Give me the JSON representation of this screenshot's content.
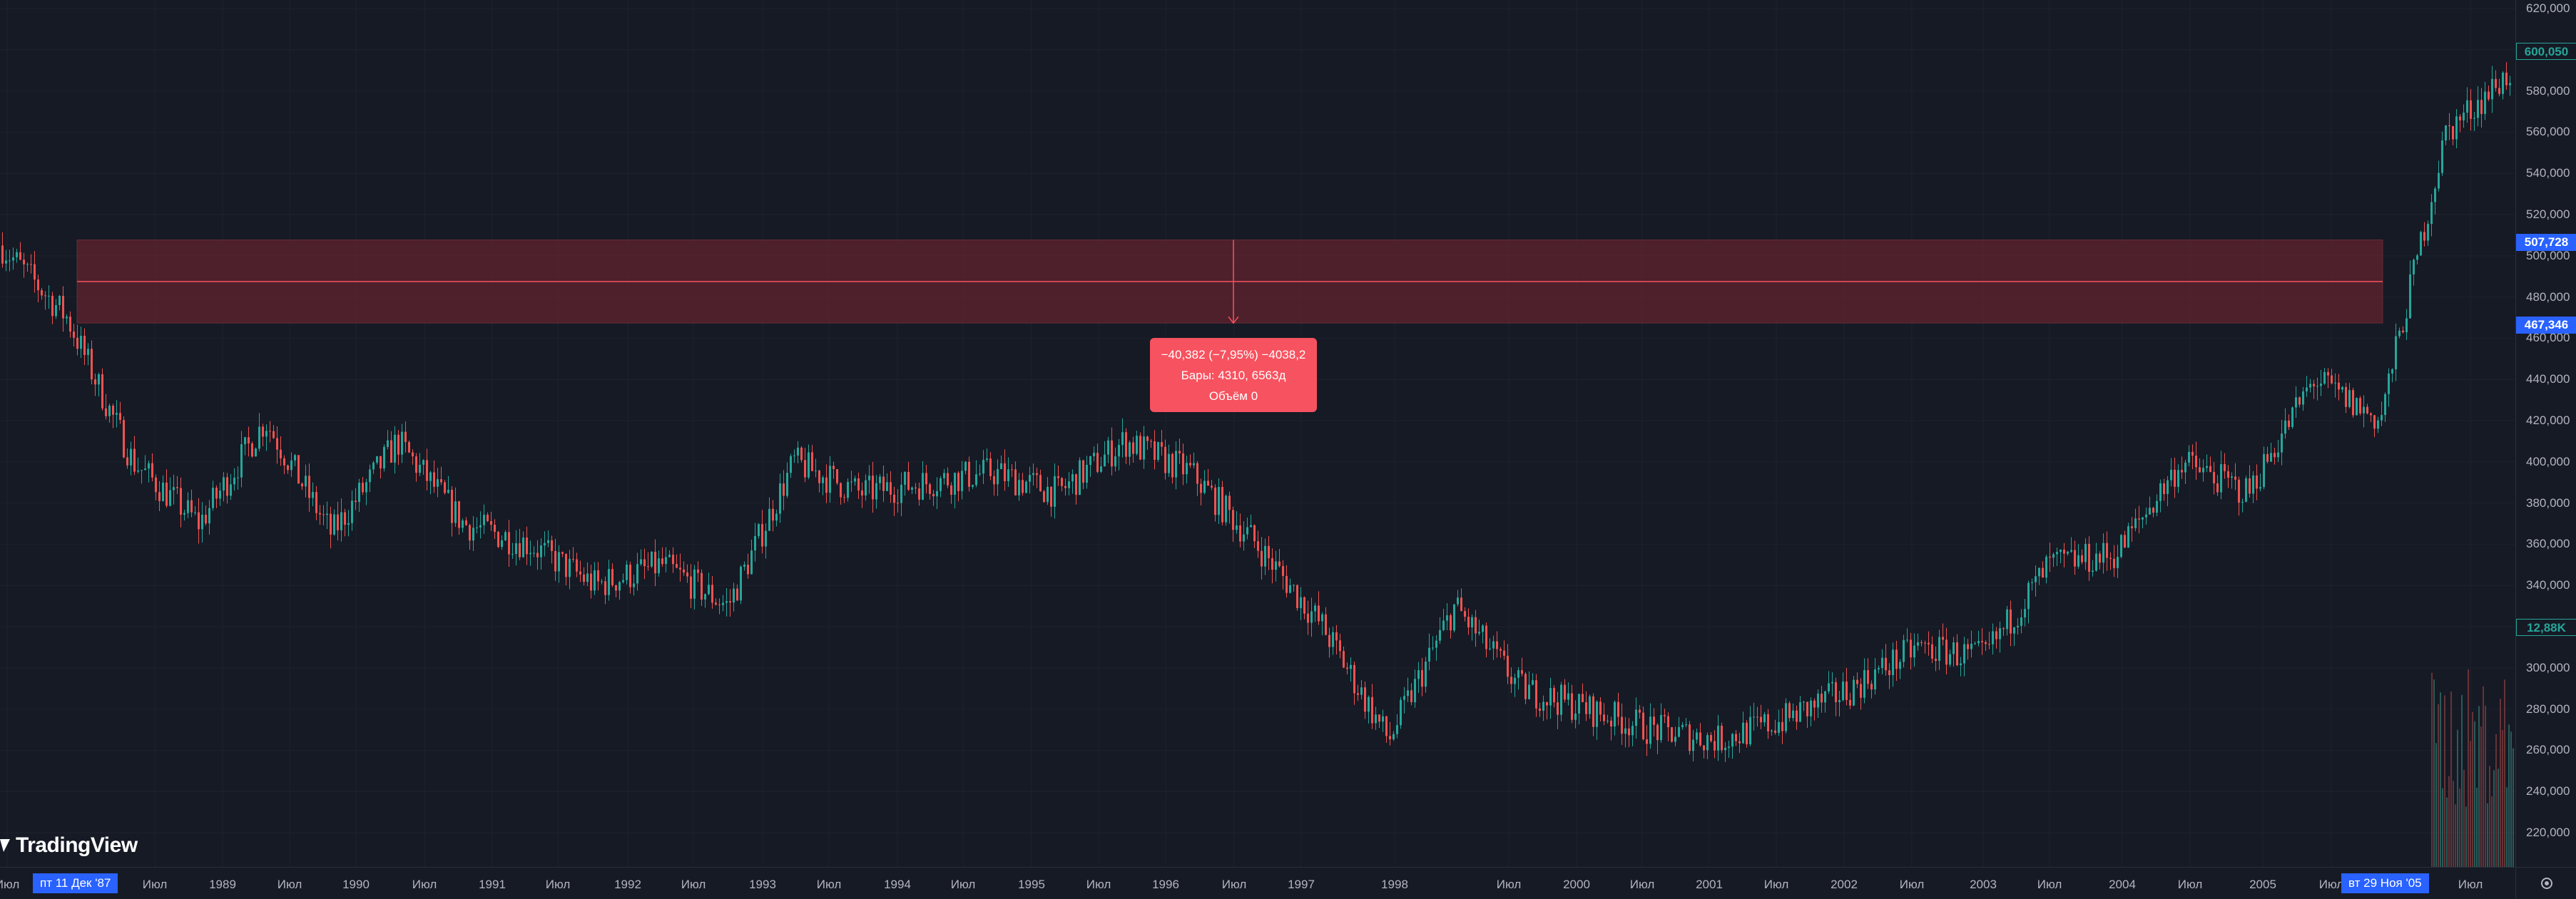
{
  "app": {
    "logo_text": "TradingView"
  },
  "colors": {
    "background": "#161a25",
    "grid": "#1e222d",
    "up_candle": "#26a69a",
    "down_candle": "#ef5350",
    "measure_fill": "#7a2631",
    "measure_line": "#f7525f",
    "tooltip_bg": "#f7525f",
    "crosshair_tag": "#2962ff",
    "last_price": "#26a69a"
  },
  "price_axis": {
    "labels": [
      "620,000",
      "600,000",
      "580,000",
      "560,000",
      "540,000",
      "520,000",
      "500,000",
      "480,000",
      "460,000",
      "440,000",
      "420,000",
      "400,000",
      "380,000",
      "360,000",
      "340,000",
      "320,000",
      "300,000",
      "280,000",
      "260,000",
      "240,000",
      "220,000"
    ],
    "last_price_tag": "600,050",
    "upper_tag": "507,728",
    "lower_tag": "467,346",
    "volume_tag": "12,88K"
  },
  "time_axis": {
    "labels": [
      {
        "text": "Июл",
        "x": 10
      },
      {
        "text": "Июл",
        "x": 217
      },
      {
        "text": "1989",
        "x": 312
      },
      {
        "text": "Июл",
        "x": 406
      },
      {
        "text": "1990",
        "x": 499
      },
      {
        "text": "Июл",
        "x": 595
      },
      {
        "text": "1991",
        "x": 690
      },
      {
        "text": "Июл",
        "x": 782
      },
      {
        "text": "1992",
        "x": 880
      },
      {
        "text": "Июл",
        "x": 972
      },
      {
        "text": "1993",
        "x": 1069
      },
      {
        "text": "Июл",
        "x": 1162
      },
      {
        "text": "1994",
        "x": 1258
      },
      {
        "text": "Июл",
        "x": 1350
      },
      {
        "text": "1995",
        "x": 1446
      },
      {
        "text": "Июл",
        "x": 1540
      },
      {
        "text": "1996",
        "x": 1634
      },
      {
        "text": "Июл",
        "x": 1730
      },
      {
        "text": "1997",
        "x": 1824
      },
      {
        "text": "1998",
        "x": 1955
      },
      {
        "text": "Июл",
        "x": 2115
      },
      {
        "text": "2000",
        "x": 2210
      },
      {
        "text": "Июл",
        "x": 2302
      },
      {
        "text": "2001",
        "x": 2396
      },
      {
        "text": "Июл",
        "x": 2490
      },
      {
        "text": "2002",
        "x": 2585
      },
      {
        "text": "Июл",
        "x": 2680
      },
      {
        "text": "2003",
        "x": 2780
      },
      {
        "text": "Июл",
        "x": 2873
      },
      {
        "text": "2004",
        "x": 2975
      },
      {
        "text": "Июл",
        "x": 3070
      },
      {
        "text": "2005",
        "x": 3172
      },
      {
        "text": "Июл",
        "x": 3268
      },
      {
        "text": "Июл",
        "x": 3463
      }
    ],
    "start_tag": "пт 11 Дек '87",
    "end_tag": "вт 29 Ноя '05"
  },
  "measure": {
    "line1": "−40,382 (−7,95%) −4038,2",
    "line2": "Бары: 4310, 6563д",
    "line3": "Объём 0"
  },
  "chart_data": {
    "type": "candlestick",
    "ylim": [
      205000,
      625000
    ],
    "x": [
      "1987-12",
      "1988-07",
      "1989-01",
      "1989-07",
      "1990-01",
      "1990-07",
      "1991-01",
      "1991-07",
      "1992-01",
      "1992-07",
      "1993-01",
      "1993-07",
      "1994-01",
      "1994-07",
      "1995-01",
      "1995-07",
      "1996-01",
      "1996-07",
      "1997-01",
      "1997-07",
      "1998-01",
      "1998-07",
      "1999-01",
      "1999-07",
      "2000-01",
      "2000-07",
      "2001-01",
      "2001-07",
      "2002-01",
      "2002-07",
      "2003-01",
      "2003-07",
      "2004-01",
      "2004-07",
      "2005-01",
      "2005-07",
      "2005-11",
      "2006-01",
      "2006-07"
    ],
    "close": [
      505000,
      470000,
      400000,
      370000,
      420000,
      365000,
      410000,
      370000,
      360000,
      340000,
      350000,
      330000,
      400000,
      385000,
      390000,
      395000,
      385000,
      410000,
      395000,
      360000,
      320000,
      265000,
      330000,
      290000,
      280000,
      270000,
      265000,
      275000,
      290000,
      310000,
      305000,
      350000,
      355000,
      400000,
      385000,
      440000,
      420000,
      560000,
      590000
    ],
    "measure_range": {
      "from": 467346,
      "to": 507728
    }
  }
}
